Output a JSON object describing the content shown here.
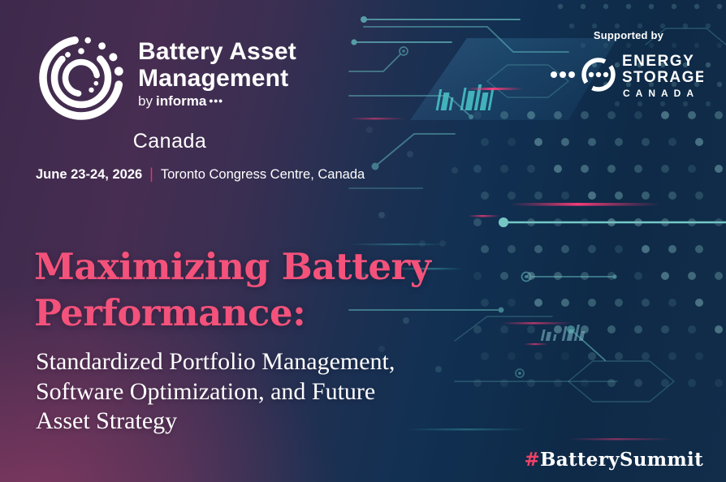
{
  "brand": {
    "logo_icon": "battery-asset-management-logo",
    "title_line1": "Battery Asset",
    "title_line2": "Management",
    "byline_prefix": "by",
    "byline_name": "informa",
    "byline_dots": "•••",
    "region": "Canada"
  },
  "event": {
    "dates": "June 23-24, 2026",
    "separator": "|",
    "venue": "Toronto Congress Centre, Canada"
  },
  "headline": {
    "title_line1": "Maximizing Battery",
    "title_line2": "Performance:",
    "subtitle_line1": "Standardized Portfolio Management,",
    "subtitle_line2": "Software Optimization, and Future",
    "subtitle_line3": "Asset Strategy"
  },
  "sponsor": {
    "label": "Supported by",
    "logo_icon": "energy-storage-canada-logo",
    "name_line1": "ENERGY",
    "name_line2": "STORAGE",
    "name_line3": "CANADA"
  },
  "footer": {
    "hashtag_symbol": "#",
    "hashtag_text": "BatterySummit"
  },
  "colors": {
    "headline_pink": "#f4527b",
    "accent_pink": "#e8336d",
    "circuit_teal": "#7fb6bb",
    "bright_teal": "#49c7c4",
    "navy": "#0e2a47",
    "purple": "#3e2a4c",
    "maroon": "#8c3f66",
    "white": "#ffffff"
  }
}
